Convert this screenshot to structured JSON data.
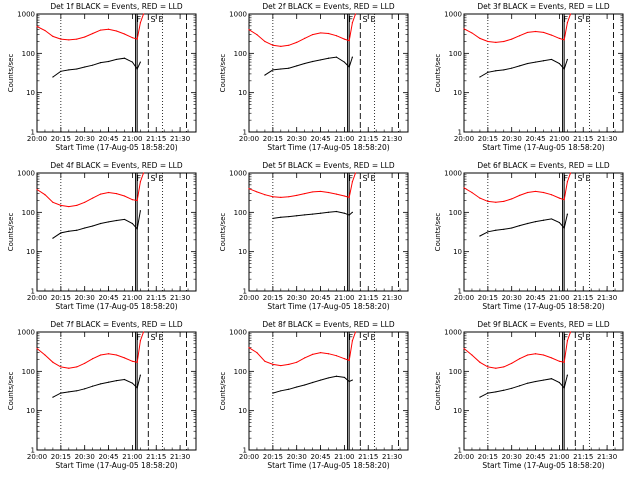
{
  "figure": {
    "ylabel": "Counts/sec",
    "xlabel": "Start Time (17-Aug-05 18:58:20)",
    "colors": {
      "events": "#000000",
      "lld": "#ff0000",
      "axes": "#000000"
    }
  },
  "chart_data": [
    {
      "type": "line",
      "title": "Det 1f BLACK = Events, RED = LLD",
      "xlim": [
        "20:00",
        "21:40"
      ],
      "ylim": [
        1,
        1000
      ],
      "yscale": "log",
      "x_ticks": [
        "20:00",
        "20:15",
        "20:30",
        "20:45",
        "21:00",
        "21:15",
        "21:30"
      ],
      "y_ticks": [
        "1",
        "10",
        "100",
        "1000"
      ],
      "annotations": [
        "F",
        "S",
        "E"
      ],
      "series": [
        {
          "role": "events",
          "color": "#000000",
          "x": [
            "20:10",
            "20:15",
            "20:20",
            "20:25",
            "20:30",
            "20:35",
            "20:40",
            "20:45",
            "20:50",
            "20:55",
            "21:00",
            "21:03",
            "21:05"
          ],
          "y": [
            25,
            35,
            38,
            40,
            45,
            50,
            58,
            62,
            70,
            75,
            60,
            40,
            60
          ]
        },
        {
          "role": "lld",
          "color": "#ff0000",
          "x": [
            "20:00",
            "20:05",
            "20:10",
            "20:15",
            "20:20",
            "20:25",
            "20:30",
            "20:35",
            "20:40",
            "20:45",
            "20:50",
            "20:55",
            "21:00",
            "21:03",
            "21:05",
            "21:07"
          ],
          "y": [
            480,
            380,
            270,
            230,
            220,
            230,
            260,
            320,
            390,
            410,
            370,
            310,
            250,
            230,
            600,
            1000
          ]
        }
      ]
    },
    {
      "type": "line",
      "title": "Det 2f BLACK = Events, RED = LLD",
      "xlim": [
        "20:00",
        "21:40"
      ],
      "ylim": [
        1,
        1000
      ],
      "yscale": "log",
      "x_ticks": [
        "20:00",
        "20:15",
        "20:30",
        "20:45",
        "21:00",
        "21:15",
        "21:30"
      ],
      "y_ticks": [
        "1",
        "10",
        "100",
        "1000"
      ],
      "annotations": [
        "F",
        "S",
        "E"
      ],
      "series": [
        {
          "role": "events",
          "color": "#000000",
          "x": [
            "20:10",
            "20:15",
            "20:20",
            "20:25",
            "20:30",
            "20:35",
            "20:40",
            "20:45",
            "20:50",
            "20:55",
            "21:00",
            "21:03",
            "21:05"
          ],
          "y": [
            28,
            38,
            40,
            42,
            48,
            55,
            62,
            68,
            75,
            80,
            60,
            45,
            80
          ]
        },
        {
          "role": "lld",
          "color": "#ff0000",
          "x": [
            "20:00",
            "20:05",
            "20:10",
            "20:15",
            "20:20",
            "20:25",
            "20:30",
            "20:35",
            "20:40",
            "20:45",
            "20:50",
            "20:55",
            "21:00",
            "21:03",
            "21:05",
            "21:07"
          ],
          "y": [
            400,
            300,
            200,
            160,
            150,
            160,
            190,
            240,
            300,
            330,
            320,
            280,
            230,
            210,
            600,
            1000
          ]
        }
      ]
    },
    {
      "type": "line",
      "title": "Det 3f BLACK = Events, RED = LLD",
      "xlim": [
        "20:00",
        "21:40"
      ],
      "ylim": [
        1,
        1000
      ],
      "yscale": "log",
      "x_ticks": [
        "20:00",
        "20:15",
        "20:30",
        "20:45",
        "21:00",
        "21:15",
        "21:30"
      ],
      "y_ticks": [
        "1",
        "10",
        "100",
        "1000"
      ],
      "annotations": [
        "F",
        "S",
        "E"
      ],
      "series": [
        {
          "role": "events",
          "color": "#000000",
          "x": [
            "20:10",
            "20:15",
            "20:20",
            "20:25",
            "20:30",
            "20:35",
            "20:40",
            "20:45",
            "20:50",
            "20:55",
            "21:00",
            "21:03",
            "21:05"
          ],
          "y": [
            25,
            33,
            36,
            38,
            42,
            48,
            55,
            60,
            65,
            70,
            55,
            40,
            70
          ]
        },
        {
          "role": "lld",
          "color": "#ff0000",
          "x": [
            "20:00",
            "20:05",
            "20:10",
            "20:15",
            "20:20",
            "20:25",
            "20:30",
            "20:35",
            "20:40",
            "20:45",
            "20:50",
            "20:55",
            "21:00",
            "21:03",
            "21:05",
            "21:07"
          ],
          "y": [
            420,
            330,
            240,
            200,
            190,
            200,
            230,
            280,
            340,
            360,
            340,
            290,
            240,
            220,
            600,
            1000
          ]
        }
      ]
    },
    {
      "type": "line",
      "title": "Det 4f BLACK = Events, RED = LLD",
      "xlim": [
        "20:00",
        "21:40"
      ],
      "ylim": [
        1,
        1000
      ],
      "yscale": "log",
      "x_ticks": [
        "20:00",
        "20:15",
        "20:30",
        "20:45",
        "21:00",
        "21:15",
        "21:30"
      ],
      "y_ticks": [
        "1",
        "10",
        "100",
        "1000"
      ],
      "annotations": [
        "F",
        "S",
        "E"
      ],
      "series": [
        {
          "role": "events",
          "color": "#000000",
          "x": [
            "20:10",
            "20:15",
            "20:20",
            "20:25",
            "20:30",
            "20:35",
            "20:40",
            "20:45",
            "20:50",
            "20:55",
            "21:00",
            "21:03",
            "21:05"
          ],
          "y": [
            22,
            30,
            33,
            35,
            40,
            45,
            52,
            57,
            62,
            66,
            52,
            38,
            110
          ]
        },
        {
          "role": "lld",
          "color": "#ff0000",
          "x": [
            "20:00",
            "20:05",
            "20:10",
            "20:15",
            "20:20",
            "20:25",
            "20:30",
            "20:35",
            "20:40",
            "20:45",
            "20:50",
            "20:55",
            "21:00",
            "21:03",
            "21:05",
            "21:07"
          ],
          "y": [
            380,
            280,
            180,
            150,
            140,
            150,
            180,
            230,
            290,
            320,
            300,
            260,
            210,
            200,
            600,
            1000
          ]
        }
      ]
    },
    {
      "type": "line",
      "title": "Det 5f BLACK = Events, RED = LLD",
      "xlim": [
        "20:00",
        "21:40"
      ],
      "ylim": [
        1,
        1000
      ],
      "yscale": "log",
      "x_ticks": [
        "20:00",
        "20:15",
        "20:30",
        "20:45",
        "21:00",
        "21:15",
        "21:30"
      ],
      "y_ticks": [
        "1",
        "10",
        "100",
        "1000"
      ],
      "annotations": [
        "F",
        "S",
        "E"
      ],
      "series": [
        {
          "role": "events",
          "color": "#000000",
          "x": [
            "20:15",
            "20:20",
            "20:25",
            "20:30",
            "20:35",
            "20:40",
            "20:45",
            "20:50",
            "20:55",
            "21:00",
            "21:03",
            "21:05"
          ],
          "y": [
            70,
            75,
            78,
            82,
            86,
            90,
            95,
            100,
            105,
            95,
            85,
            100
          ]
        },
        {
          "role": "lld",
          "color": "#ff0000",
          "x": [
            "20:00",
            "20:05",
            "20:10",
            "20:15",
            "20:20",
            "20:25",
            "20:30",
            "20:35",
            "20:40",
            "20:45",
            "20:50",
            "20:55",
            "21:00",
            "21:03",
            "21:05",
            "21:07"
          ],
          "y": [
            400,
            330,
            280,
            250,
            240,
            250,
            270,
            300,
            330,
            340,
            320,
            290,
            260,
            240,
            600,
            1000
          ]
        }
      ]
    },
    {
      "type": "line",
      "title": "Det 6f BLACK = Events, RED = LLD",
      "xlim": [
        "20:00",
        "21:40"
      ],
      "ylim": [
        1,
        1000
      ],
      "yscale": "log",
      "x_ticks": [
        "20:00",
        "20:15",
        "20:30",
        "20:45",
        "21:00",
        "21:15",
        "21:30"
      ],
      "y_ticks": [
        "1",
        "10",
        "100",
        "1000"
      ],
      "annotations": [
        "F",
        "S",
        "E"
      ],
      "series": [
        {
          "role": "events",
          "color": "#000000",
          "x": [
            "20:10",
            "20:15",
            "20:20",
            "20:25",
            "20:30",
            "20:35",
            "20:40",
            "20:45",
            "20:50",
            "20:55",
            "21:00",
            "21:03",
            "21:05"
          ],
          "y": [
            25,
            32,
            35,
            37,
            40,
            46,
            52,
            58,
            63,
            68,
            55,
            40,
            90
          ]
        },
        {
          "role": "lld",
          "color": "#ff0000",
          "x": [
            "20:00",
            "20:05",
            "20:10",
            "20:15",
            "20:20",
            "20:25",
            "20:30",
            "20:35",
            "20:40",
            "20:45",
            "20:50",
            "20:55",
            "21:00",
            "21:03",
            "21:05",
            "21:07"
          ],
          "y": [
            420,
            320,
            230,
            190,
            180,
            190,
            220,
            270,
            320,
            340,
            320,
            280,
            230,
            210,
            600,
            1000
          ]
        }
      ]
    },
    {
      "type": "line",
      "title": "Det 7f BLACK = Events, RED = LLD",
      "xlim": [
        "20:00",
        "21:40"
      ],
      "ylim": [
        1,
        1000
      ],
      "yscale": "log",
      "x_ticks": [
        "20:00",
        "20:15",
        "20:30",
        "20:45",
        "21:00",
        "21:15",
        "21:30"
      ],
      "y_ticks": [
        "1",
        "10",
        "100",
        "1000"
      ],
      "annotations": [
        "F",
        "S",
        "E"
      ],
      "series": [
        {
          "role": "events",
          "color": "#000000",
          "x": [
            "20:10",
            "20:15",
            "20:20",
            "20:25",
            "20:30",
            "20:35",
            "20:40",
            "20:45",
            "20:50",
            "20:55",
            "21:00",
            "21:03",
            "21:05"
          ],
          "y": [
            22,
            28,
            30,
            32,
            36,
            42,
            48,
            53,
            58,
            62,
            50,
            38,
            80
          ]
        },
        {
          "role": "lld",
          "color": "#ff0000",
          "x": [
            "20:00",
            "20:05",
            "20:10",
            "20:15",
            "20:20",
            "20:25",
            "20:30",
            "20:35",
            "20:40",
            "20:45",
            "20:50",
            "20:55",
            "21:00",
            "21:03",
            "21:05",
            "21:07"
          ],
          "y": [
            380,
            260,
            170,
            130,
            120,
            130,
            160,
            210,
            260,
            280,
            260,
            220,
            180,
            170,
            600,
            1000
          ]
        }
      ]
    },
    {
      "type": "line",
      "title": "Det 8f BLACK = Events, RED = LLD",
      "xlim": [
        "20:00",
        "21:40"
      ],
      "ylim": [
        1,
        1000
      ],
      "yscale": "log",
      "x_ticks": [
        "20:00",
        "20:15",
        "20:30",
        "20:45",
        "21:00",
        "21:15",
        "21:30"
      ],
      "y_ticks": [
        "1",
        "10",
        "100",
        "1000"
      ],
      "annotations": [
        "F",
        "S",
        "E"
      ],
      "series": [
        {
          "role": "events",
          "color": "#000000",
          "x": [
            "20:15",
            "20:20",
            "20:25",
            "20:30",
            "20:35",
            "20:40",
            "20:45",
            "20:50",
            "20:55",
            "21:00",
            "21:03",
            "21:05"
          ],
          "y": [
            28,
            32,
            35,
            40,
            45,
            52,
            60,
            68,
            75,
            70,
            55,
            60
          ]
        },
        {
          "role": "lld",
          "color": "#ff0000",
          "x": [
            "20:00",
            "20:05",
            "20:10",
            "20:15",
            "20:20",
            "20:25",
            "20:30",
            "20:35",
            "20:40",
            "20:45",
            "20:50",
            "20:55",
            "21:00",
            "21:03",
            "21:05",
            "21:07"
          ],
          "y": [
            400,
            300,
            180,
            150,
            140,
            150,
            170,
            220,
            270,
            300,
            280,
            250,
            210,
            190,
            600,
            1000
          ]
        }
      ]
    },
    {
      "type": "line",
      "title": "Det 9f BLACK = Events, RED = LLD",
      "xlim": [
        "20:00",
        "21:40"
      ],
      "ylim": [
        1,
        1000
      ],
      "yscale": "log",
      "x_ticks": [
        "20:00",
        "20:15",
        "20:30",
        "20:45",
        "21:00",
        "21:15",
        "21:30"
      ],
      "y_ticks": [
        "1",
        "10",
        "100",
        "1000"
      ],
      "annotations": [
        "F",
        "S",
        "E"
      ],
      "series": [
        {
          "role": "events",
          "color": "#000000",
          "x": [
            "20:10",
            "20:15",
            "20:20",
            "20:25",
            "20:30",
            "20:35",
            "20:40",
            "20:45",
            "20:50",
            "20:55",
            "21:00",
            "21:03",
            "21:05"
          ],
          "y": [
            22,
            28,
            30,
            33,
            37,
            43,
            50,
            55,
            60,
            65,
            52,
            38,
            80
          ]
        },
        {
          "role": "lld",
          "color": "#ff0000",
          "x": [
            "20:00",
            "20:05",
            "20:10",
            "20:15",
            "20:20",
            "20:25",
            "20:30",
            "20:35",
            "20:40",
            "20:45",
            "20:50",
            "20:55",
            "21:00",
            "21:03",
            "21:05",
            "21:07"
          ],
          "y": [
            380,
            260,
            170,
            130,
            120,
            130,
            160,
            210,
            260,
            280,
            260,
            220,
            180,
            170,
            600,
            1000
          ]
        }
      ]
    }
  ]
}
